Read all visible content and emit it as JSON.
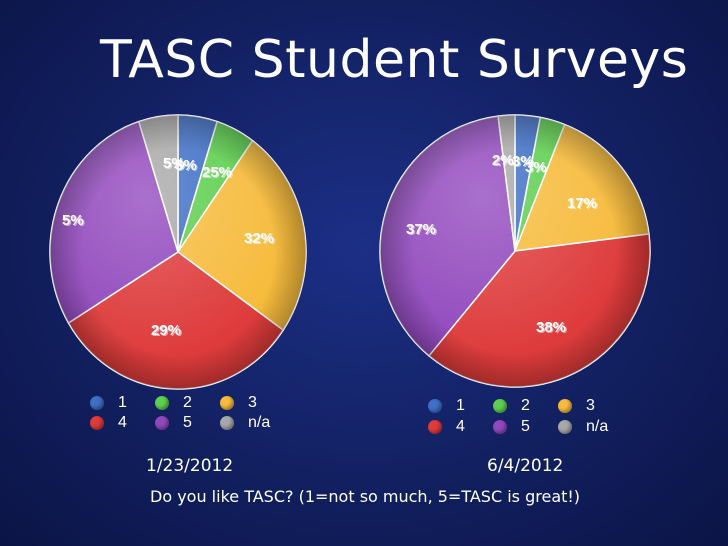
{
  "title": "TASC Student Surveys",
  "question": "Do you like TASC? (1=not so much, 5=TASC is great!)",
  "colors": {
    "1": "#3f6fc6",
    "2": "#5ecf4f",
    "3": "#f6bb3c",
    "4": "#de3b3b",
    "5": "#9148bd",
    "n/a": "#a8a8a8"
  },
  "legend_labels": [
    "1",
    "2",
    "3",
    "4",
    "5",
    "n/a"
  ],
  "chart_data": [
    {
      "type": "pie",
      "title": "1/23/2012",
      "categories": [
        "1",
        "2",
        "3",
        "4",
        "5",
        "n/a"
      ],
      "values": [
        5,
        5,
        25,
        32,
        29,
        5
      ],
      "labels": [
        "5%",
        "5%",
        "25%",
        "32%",
        "29%",
        "5%"
      ]
    },
    {
      "type": "pie",
      "title": "6/4/2012",
      "categories": [
        "1",
        "2",
        "3",
        "4",
        "5",
        "n/a"
      ],
      "values": [
        3,
        3,
        17,
        38,
        37,
        2
      ],
      "labels": [
        "3%",
        "3%",
        "17%",
        "38%",
        "37%",
        "2%"
      ]
    }
  ]
}
